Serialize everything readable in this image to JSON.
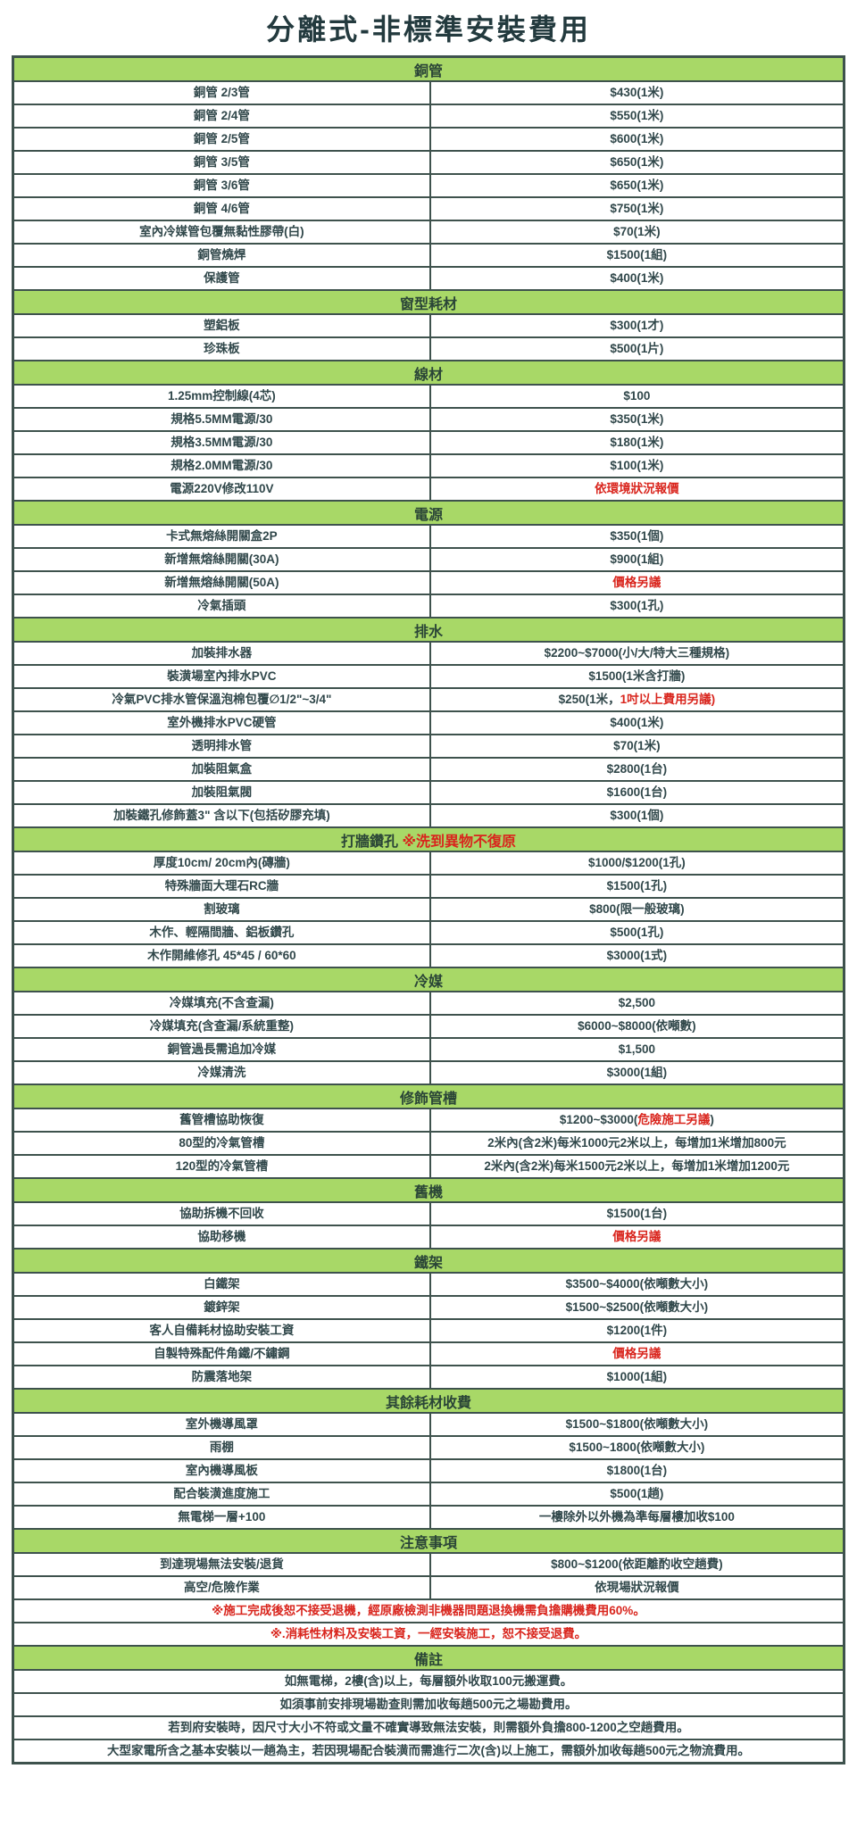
{
  "title": "分離式-非標準安裝費用",
  "colors": {
    "header_bg": "#a8d867",
    "border": "#3e524d",
    "text": "#30474a",
    "accent_red": "#d9251d"
  },
  "sections": [
    {
      "header": [
        {
          "t": "銅管"
        }
      ],
      "rows": [
        {
          "label": [
            {
              "t": "銅管 2/3管"
            }
          ],
          "value": [
            {
              "t": "$430(1米)"
            }
          ]
        },
        {
          "label": [
            {
              "t": "銅管 2/4管"
            }
          ],
          "value": [
            {
              "t": "$550(1米)"
            }
          ]
        },
        {
          "label": [
            {
              "t": "銅管 2/5管"
            }
          ],
          "value": [
            {
              "t": "$600(1米)"
            }
          ]
        },
        {
          "label": [
            {
              "t": "銅管 3/5管"
            }
          ],
          "value": [
            {
              "t": "$650(1米)"
            }
          ]
        },
        {
          "label": [
            {
              "t": "銅管 3/6管"
            }
          ],
          "value": [
            {
              "t": "$650(1米)"
            }
          ]
        },
        {
          "label": [
            {
              "t": "銅管 4/6管"
            }
          ],
          "value": [
            {
              "t": "$750(1米)"
            }
          ]
        },
        {
          "label": [
            {
              "t": "室內冷媒管包覆無黏性膠帶(白)"
            }
          ],
          "value": [
            {
              "t": "$70(1米)"
            }
          ]
        },
        {
          "label": [
            {
              "t": "銅管燒焊"
            }
          ],
          "value": [
            {
              "t": "$1500(1組)"
            }
          ]
        },
        {
          "label": [
            {
              "t": "保護管"
            }
          ],
          "value": [
            {
              "t": "$400(1米)"
            }
          ]
        }
      ]
    },
    {
      "header": [
        {
          "t": "窗型耗材"
        }
      ],
      "rows": [
        {
          "label": [
            {
              "t": "塑鋁板"
            }
          ],
          "value": [
            {
              "t": "$300(1才)"
            }
          ]
        },
        {
          "label": [
            {
              "t": "珍珠板"
            }
          ],
          "value": [
            {
              "t": "$500(1片)"
            }
          ]
        }
      ]
    },
    {
      "header": [
        {
          "t": "線材"
        }
      ],
      "rows": [
        {
          "label": [
            {
              "t": "1.25mm控制線(4芯)"
            }
          ],
          "value": [
            {
              "t": "$100"
            }
          ]
        },
        {
          "label": [
            {
              "t": "規格5.5MM電源/30"
            }
          ],
          "value": [
            {
              "t": "$350(1米)"
            }
          ]
        },
        {
          "label": [
            {
              "t": "規格3.5MM電源/30"
            }
          ],
          "value": [
            {
              "t": "$180(1米)"
            }
          ]
        },
        {
          "label": [
            {
              "t": "規格2.0MM電源/30"
            }
          ],
          "value": [
            {
              "t": "$100(1米)"
            }
          ]
        },
        {
          "label": [
            {
              "t": "電源220V修改110V"
            }
          ],
          "value": [
            {
              "t": "依環境狀況報價",
              "c": "red"
            }
          ]
        }
      ]
    },
    {
      "header": [
        {
          "t": "電源"
        }
      ],
      "rows": [
        {
          "label": [
            {
              "t": "卡式無熔絲開關盒2P"
            }
          ],
          "value": [
            {
              "t": "$350(1個)"
            }
          ]
        },
        {
          "label": [
            {
              "t": "新增無熔絲開關(30A)"
            }
          ],
          "value": [
            {
              "t": "$900(1組)"
            }
          ]
        },
        {
          "label": [
            {
              "t": "新增無熔絲開關(50A)"
            }
          ],
          "value": [
            {
              "t": "價格另議",
              "c": "red"
            }
          ]
        },
        {
          "label": [
            {
              "t": "冷氣插頭"
            }
          ],
          "value": [
            {
              "t": "$300(1孔)"
            }
          ]
        }
      ]
    },
    {
      "header": [
        {
          "t": "排水"
        }
      ],
      "rows": [
        {
          "label": [
            {
              "t": "加裝排水器"
            }
          ],
          "value": [
            {
              "t": "$2200~$7000(小/大/特大三種規格)"
            }
          ]
        },
        {
          "label": [
            {
              "t": "裝潢場室內排水PVC"
            }
          ],
          "value": [
            {
              "t": "$1500(1米含打牆)"
            }
          ]
        },
        {
          "label": [
            {
              "t": "冷氣PVC排水管保溫泡棉包覆∅1/2\"~3/4\""
            }
          ],
          "value": [
            {
              "t": "$250(1米，"
            },
            {
              "t": "1吋以上費用另議)",
              "c": "red"
            }
          ]
        },
        {
          "label": [
            {
              "t": "室外機排水PVC硬管"
            }
          ],
          "value": [
            {
              "t": "$400(1米)"
            }
          ]
        },
        {
          "label": [
            {
              "t": "透明排水管"
            }
          ],
          "value": [
            {
              "t": "$70(1米)"
            }
          ]
        },
        {
          "label": [
            {
              "t": "加裝阻氣盒"
            }
          ],
          "value": [
            {
              "t": "$2800(1台)"
            }
          ]
        },
        {
          "label": [
            {
              "t": "加裝阻氣閥"
            }
          ],
          "value": [
            {
              "t": "$1600(1台)"
            }
          ]
        },
        {
          "label": [
            {
              "t": "加裝鐵孔修飾蓋3\" 含以下(包括矽膠充填)"
            }
          ],
          "value": [
            {
              "t": "$300(1個)"
            }
          ]
        }
      ]
    },
    {
      "header": [
        {
          "t": "打牆鑽孔 "
        },
        {
          "t": "※洗到異物不復原",
          "c": "red"
        }
      ],
      "rows": [
        {
          "label": [
            {
              "t": "厚度10cm/ 20cm內(磚牆)"
            }
          ],
          "value": [
            {
              "t": "$1000/$1200(1孔)"
            }
          ]
        },
        {
          "label": [
            {
              "t": "特殊牆面大理石RC牆"
            }
          ],
          "value": [
            {
              "t": "$1500(1孔)"
            }
          ]
        },
        {
          "label": [
            {
              "t": "割玻璃"
            }
          ],
          "value": [
            {
              "t": "$800(限一般玻璃)"
            }
          ]
        },
        {
          "label": [
            {
              "t": "木作、輕隔間牆、鋁板鑽孔"
            }
          ],
          "value": [
            {
              "t": "$500(1孔)"
            }
          ]
        },
        {
          "label": [
            {
              "t": "木作開維修孔 45*45 / 60*60"
            }
          ],
          "value": [
            {
              "t": "$3000(1式)"
            }
          ]
        }
      ]
    },
    {
      "header": [
        {
          "t": "冷媒"
        }
      ],
      "rows": [
        {
          "label": [
            {
              "t": "冷媒填充(不含查漏)"
            }
          ],
          "value": [
            {
              "t": "$2,500"
            }
          ]
        },
        {
          "label": [
            {
              "t": "冷媒填充(含查漏/系統重整)"
            }
          ],
          "value": [
            {
              "t": "$6000~$8000(依噸數)"
            }
          ]
        },
        {
          "label": [
            {
              "t": "銅管過長需追加冷媒"
            }
          ],
          "value": [
            {
              "t": "$1,500"
            }
          ]
        },
        {
          "label": [
            {
              "t": "冷媒清洗"
            }
          ],
          "value": [
            {
              "t": "$3000(1組)"
            }
          ]
        }
      ]
    },
    {
      "header": [
        {
          "t": "修飾管槽"
        }
      ],
      "rows": [
        {
          "label": [
            {
              "t": "舊管槽協助恢復"
            }
          ],
          "value": [
            {
              "t": "$1200~$3000("
            },
            {
              "t": "危險施工另議",
              "c": "red"
            },
            {
              "t": ")"
            }
          ]
        },
        {
          "label": [
            {
              "t": "80型的冷氣管槽"
            }
          ],
          "value": [
            {
              "t": "2米內(含2米)每米1000元2米以上，每增加1米增加800元"
            }
          ]
        },
        {
          "label": [
            {
              "t": "120型的冷氣管槽"
            }
          ],
          "value": [
            {
              "t": "2米內(含2米)每米1500元2米以上，每增加1米增加1200元"
            }
          ]
        }
      ]
    },
    {
      "header": [
        {
          "t": "舊機"
        }
      ],
      "rows": [
        {
          "label": [
            {
              "t": "協助拆機不回收"
            }
          ],
          "value": [
            {
              "t": "$1500(1台)"
            }
          ]
        },
        {
          "label": [
            {
              "t": "協助移機"
            }
          ],
          "value": [
            {
              "t": "價格另議",
              "c": "red"
            }
          ]
        }
      ]
    },
    {
      "header": [
        {
          "t": "鐵架"
        }
      ],
      "rows": [
        {
          "label": [
            {
              "t": "白鐵架"
            }
          ],
          "value": [
            {
              "t": "$3500~$4000(依噸數大小)"
            }
          ]
        },
        {
          "label": [
            {
              "t": "鍍鋅架"
            }
          ],
          "value": [
            {
              "t": "$1500~$2500(依噸數大小)"
            }
          ]
        },
        {
          "label": [
            {
              "t": "客人自備耗材協助安裝工資"
            }
          ],
          "value": [
            {
              "t": "$1200(1件)"
            }
          ]
        },
        {
          "label": [
            {
              "t": "自製特殊配件角鐵/不鏽鋼"
            }
          ],
          "value": [
            {
              "t": "價格另議",
              "c": "red"
            }
          ]
        },
        {
          "label": [
            {
              "t": "防震落地架"
            }
          ],
          "value": [
            {
              "t": "$1000(1組)"
            }
          ]
        }
      ]
    },
    {
      "header": [
        {
          "t": "其餘耗材收費"
        }
      ],
      "rows": [
        {
          "label": [
            {
              "t": "室外機導風罩"
            }
          ],
          "value": [
            {
              "t": "$1500~$1800(依噸數大小)"
            }
          ]
        },
        {
          "label": [
            {
              "t": "雨棚"
            }
          ],
          "value": [
            {
              "t": "$1500~1800(依噸數大小)"
            }
          ]
        },
        {
          "label": [
            {
              "t": "室內機導風板"
            }
          ],
          "value": [
            {
              "t": "$1800(1台)"
            }
          ]
        },
        {
          "label": [
            {
              "t": "配合裝潢進度施工"
            }
          ],
          "value": [
            {
              "t": "$500(1趟)"
            }
          ]
        },
        {
          "label": [
            {
              "t": "無電梯一層+100"
            }
          ],
          "value": [
            {
              "t": "一樓除外以外機為準每層樓加收$100"
            }
          ]
        }
      ]
    },
    {
      "header": [
        {
          "t": "注意事項"
        }
      ],
      "rows": [
        {
          "label": [
            {
              "t": "到達現場無法安裝/退貨"
            }
          ],
          "value": [
            {
              "t": "$800~$1200(依距離酌收空趟費)"
            }
          ]
        },
        {
          "label": [
            {
              "t": "高空/危險作業"
            }
          ],
          "value": [
            {
              "t": "依現場狀況報價"
            }
          ]
        },
        {
          "full": [
            {
              "t": "※施工完成後恕不接受退機，經原廠檢測非機器問題退換機需負擔購機費用60%。",
              "c": "red"
            }
          ]
        },
        {
          "full": [
            {
              "t": "※.消耗性材料及安裝工資，一經安裝施工，恕不接受退費。",
              "c": "red"
            }
          ]
        }
      ]
    },
    {
      "header": [
        {
          "t": "備註"
        }
      ],
      "rows": [
        {
          "full": [
            {
              "t": "如無電梯，2樓(含)以上，每層額外收取100元搬運費。"
            }
          ]
        },
        {
          "full": [
            {
              "t": "如須事前安排現場勘查則需加收每趟500元之場勘費用。"
            }
          ]
        },
        {
          "full": [
            {
              "t": "若到府安裝時，因尺寸大小不符或文量不確實導致無法安裝，則需額外負擔800-1200之空趟費用。"
            }
          ]
        },
        {
          "full": [
            {
              "t": "大型家電所含之基本安裝以一趟為主，若因現場配合裝潢而需進行二次(含)以上施工，需額外加收每趟500元之物流費用。"
            }
          ]
        }
      ]
    }
  ]
}
